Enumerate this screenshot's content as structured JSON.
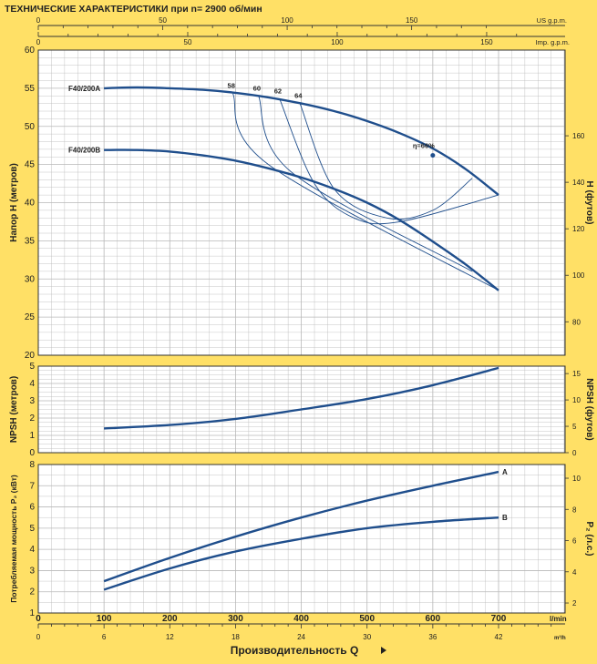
{
  "title": "ТЕХНИЧЕСКИЕ ХАРАКТЕРИСТИКИ при n= 2900 об/мин",
  "colors": {
    "background": "#FFE066",
    "plot_bg": "#FFFFFF",
    "curve": "#1F4E8C",
    "grid": "#B8B8B8"
  },
  "top_axes": {
    "us_gpm": {
      "label": "US g.p.m.",
      "ticks": [
        0,
        50,
        100,
        150
      ]
    },
    "imp_gpm": {
      "label": "Imp. g.p.m.",
      "ticks": [
        0,
        50,
        100,
        150
      ]
    }
  },
  "bottom_axes": {
    "lmin": {
      "label": "l/min",
      "ticks": [
        0,
        100,
        200,
        300,
        400,
        500,
        600,
        700
      ]
    },
    "m3h": {
      "label": "m³/h",
      "ticks": [
        0,
        6,
        12,
        18,
        24,
        30,
        36,
        42
      ]
    },
    "xlabel": "Производительность Q"
  },
  "chart_data": [
    {
      "type": "line",
      "name": "head",
      "ylabel": "Напор Н  (метров)",
      "y2label": "Н  (футов)",
      "ylim": [
        20,
        60
      ],
      "yticks": [
        20,
        25,
        30,
        35,
        40,
        45,
        50,
        55,
        60
      ],
      "y2ticks": [
        80,
        100,
        120,
        140,
        160
      ],
      "series": [
        {
          "name": "F40/200A",
          "x": [
            100,
            150,
            200,
            250,
            300,
            350,
            400,
            450,
            500,
            550,
            600,
            650,
            700
          ],
          "values": [
            55.0,
            55.1,
            55.0,
            54.8,
            54.4,
            53.8,
            53.0,
            52.0,
            50.7,
            49.1,
            47.1,
            44.4,
            41.0
          ]
        },
        {
          "name": "F40/200B",
          "x": [
            100,
            150,
            200,
            250,
            300,
            350,
            400,
            450,
            500,
            550,
            600,
            650,
            700
          ],
          "values": [
            46.9,
            46.9,
            46.7,
            46.2,
            45.5,
            44.5,
            43.3,
            41.8,
            40.0,
            37.7,
            34.9,
            31.9,
            28.5
          ]
        }
      ],
      "efficiency_contours": [
        {
          "label": "58",
          "points": [
            [
              296,
              54.3
            ],
            [
              350,
              45.0
            ],
            [
              700,
              28.5
            ]
          ]
        },
        {
          "label": "60",
          "points": [
            [
              335,
              54.0
            ],
            [
              385,
              44.0
            ],
            [
              660,
              31.0
            ]
          ]
        },
        {
          "label": "62",
          "points": [
            [
              367,
              53.6
            ],
            [
              420,
              42.5
            ],
            [
              480,
              38.0
            ],
            [
              550,
              37.5
            ],
            [
              700,
              41.0
            ]
          ]
        },
        {
          "label": "64",
          "points": [
            [
              398,
              53.0
            ],
            [
              450,
              41.8
            ],
            [
              530,
              38.0
            ],
            [
              600,
              39.0
            ],
            [
              660,
              43.2
            ]
          ]
        }
      ],
      "annotations": [
        {
          "text": "η=66%",
          "x": 600,
          "y": 46.2
        }
      ]
    },
    {
      "type": "line",
      "name": "npsh",
      "ylabel": "NPSH  (метров)",
      "y2label": "NPSH  (футов)",
      "ylim": [
        0,
        5
      ],
      "yticks": [
        0,
        1,
        2,
        3,
        4,
        5
      ],
      "y2ticks": [
        0,
        5,
        10,
        15
      ],
      "series": [
        {
          "name": "",
          "x": [
            100,
            200,
            300,
            400,
            500,
            600,
            700
          ],
          "values": [
            1.4,
            1.6,
            1.95,
            2.5,
            3.1,
            3.9,
            4.9
          ]
        }
      ]
    },
    {
      "type": "line",
      "name": "power",
      "ylabel": "Потребляемая мощность  P₂ (кВт)",
      "y2label": "P₂  (л.с.)",
      "ylim": [
        1,
        8
      ],
      "yticks": [
        1,
        2,
        3,
        4,
        5,
        6,
        7,
        8
      ],
      "y2ticks": [
        2,
        4,
        6,
        8,
        10
      ],
      "series": [
        {
          "name": "A",
          "x": [
            100,
            200,
            300,
            400,
            500,
            600,
            700
          ],
          "values": [
            2.5,
            3.6,
            4.6,
            5.5,
            6.3,
            7.0,
            7.65
          ]
        },
        {
          "name": "B",
          "x": [
            100,
            200,
            300,
            400,
            500,
            600,
            700
          ],
          "values": [
            2.1,
            3.1,
            3.9,
            4.5,
            5.0,
            5.3,
            5.5
          ]
        }
      ]
    }
  ]
}
